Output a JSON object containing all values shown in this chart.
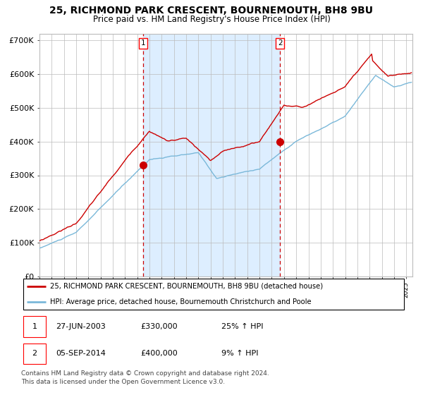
{
  "title": "25, RICHMOND PARK CRESCENT, BOURNEMOUTH, BH8 9BU",
  "subtitle": "Price paid vs. HM Land Registry's House Price Index (HPI)",
  "title_fontsize": 10,
  "subtitle_fontsize": 8.5,
  "ylim": [
    0,
    720000
  ],
  "yticks": [
    0,
    100000,
    200000,
    300000,
    400000,
    500000,
    600000,
    700000
  ],
  "ytick_labels": [
    "£0",
    "£100K",
    "£200K",
    "£300K",
    "£400K",
    "£500K",
    "£600K",
    "£700K"
  ],
  "xlim_start": 1995.0,
  "xlim_end": 2025.5,
  "hpi_color": "#7ab8d9",
  "price_color": "#cc0000",
  "background_color": "#ffffff",
  "shade_color": "#ddeeff",
  "grid_color": "#bbbbbb",
  "event1_x": 2003.49,
  "event1_y": 330000,
  "event2_x": 2014.68,
  "event2_y": 400000,
  "legend_label1": "25, RICHMOND PARK CRESCENT, BOURNEMOUTH, BH8 9BU (detached house)",
  "legend_label2": "HPI: Average price, detached house, Bournemouth Christchurch and Poole",
  "table_row1": [
    "1",
    "27-JUN-2003",
    "£330,000",
    "25% ↑ HPI"
  ],
  "table_row2": [
    "2",
    "05-SEP-2014",
    "£400,000",
    "9% ↑ HPI"
  ],
  "footnote": "Contains HM Land Registry data © Crown copyright and database right 2024.\nThis data is licensed under the Open Government Licence v3.0.",
  "footnote_fontsize": 6.5
}
